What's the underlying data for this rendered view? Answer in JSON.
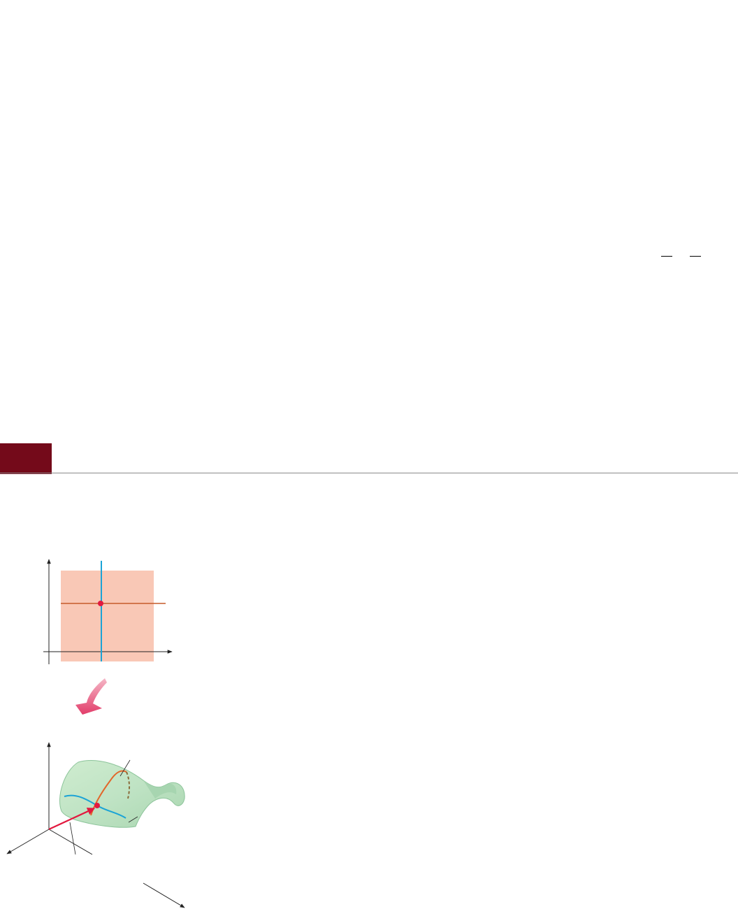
{
  "colors": {
    "section_tab": "#740a1a",
    "rule": "#8a8a8a",
    "domain_fill": "#f9c8b6",
    "line_blue": "#1ba3d6",
    "line_orange": "#c55a2a",
    "point": "#e2193f",
    "surface": "#bfe3c4",
    "position_vector": "#e2193f",
    "arrow_pink": "#e23d6a"
  },
  "icons": {
    "section_tab": "section-marker",
    "transition": "curved-down-arrow-icon"
  }
}
